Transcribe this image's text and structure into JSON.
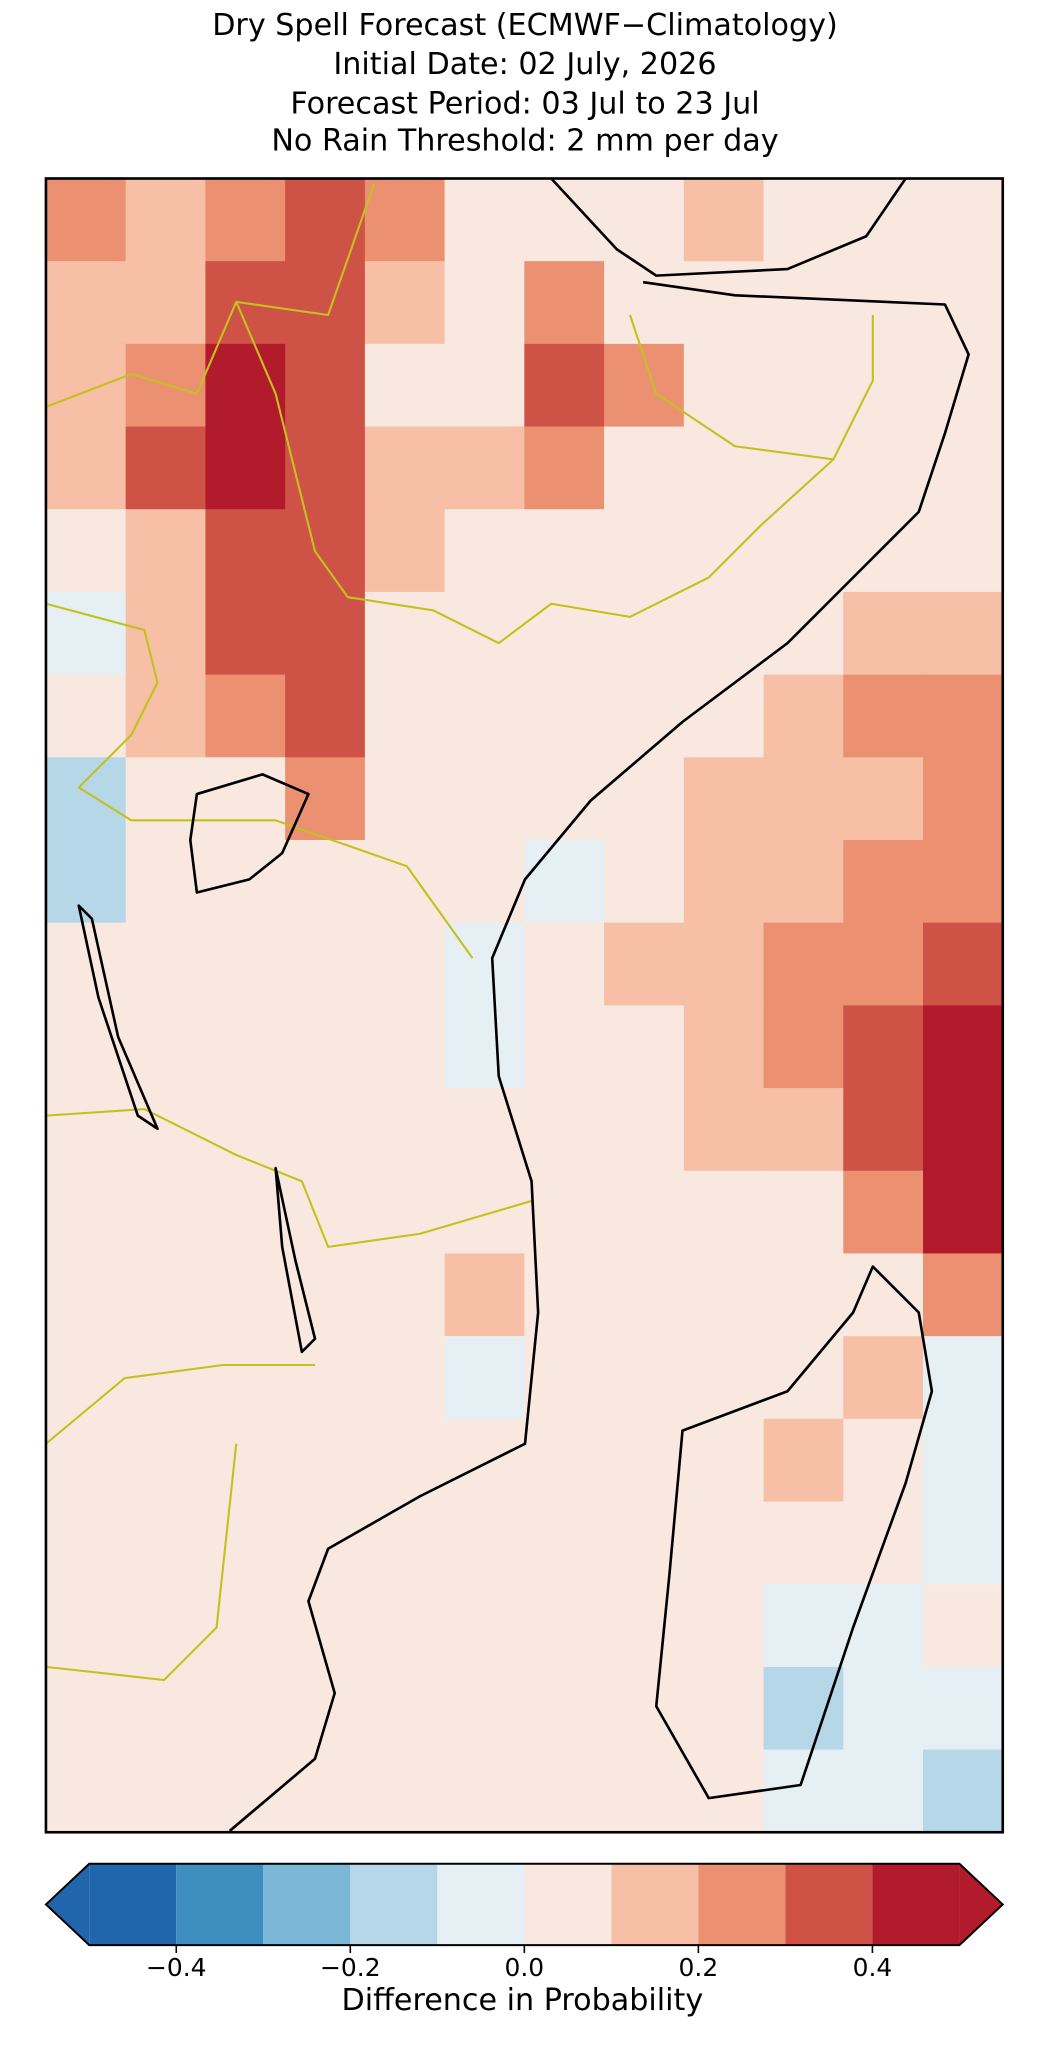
{
  "chart_data": {
    "type": "heatmap",
    "title": [
      "Dry Spell Forecast (ECMWF−Climatology)",
      "Initial Date: 02 July, 2026",
      "Forecast Period: 03 Jul to 23 Jul",
      "No Rain Threshold: 2 mm per day"
    ],
    "values": [
      [
        0.25,
        0.15,
        0.25,
        0.35,
        0.25,
        0.05,
        0.05,
        0.05,
        0.15,
        0.05,
        0.05,
        0.05
      ],
      [
        0.15,
        0.15,
        0.35,
        0.35,
        0.15,
        0.05,
        0.25,
        0.05,
        0.05,
        0.05,
        0.05,
        0.05
      ],
      [
        0.15,
        0.25,
        0.45,
        0.35,
        0.05,
        0.05,
        0.35,
        0.25,
        0.05,
        0.05,
        0.05,
        0.05
      ],
      [
        0.15,
        0.35,
        0.45,
        0.35,
        0.15,
        0.15,
        0.25,
        0.05,
        0.05,
        0.05,
        0.05,
        0.05
      ],
      [
        0.05,
        0.15,
        0.35,
        0.35,
        0.15,
        0.05,
        0.05,
        0.05,
        0.05,
        0.05,
        0.05,
        0.05
      ],
      [
        -0.05,
        0.15,
        0.35,
        0.35,
        0.05,
        0.05,
        0.05,
        0.05,
        0.05,
        0.05,
        0.15,
        0.15
      ],
      [
        0.05,
        0.15,
        0.25,
        0.35,
        0.05,
        0.05,
        0.05,
        0.05,
        0.05,
        0.15,
        0.25,
        0.25
      ],
      [
        -0.15,
        0.05,
        0.05,
        0.25,
        0.05,
        0.05,
        0.05,
        0.05,
        0.15,
        0.15,
        0.15,
        0.25
      ],
      [
        -0.15,
        0.05,
        0.05,
        0.05,
        0.05,
        0.05,
        -0.05,
        0.05,
        0.15,
        0.15,
        0.25,
        0.25
      ],
      [
        0.05,
        0.05,
        0.05,
        0.05,
        0.05,
        -0.05,
        0.05,
        0.15,
        0.15,
        0.25,
        0.25,
        0.35
      ],
      [
        0.05,
        0.05,
        0.05,
        0.05,
        0.05,
        -0.05,
        0.05,
        0.05,
        0.15,
        0.25,
        0.35,
        0.45
      ],
      [
        0.05,
        0.05,
        0.05,
        0.05,
        0.05,
        0.05,
        0.05,
        0.05,
        0.15,
        0.15,
        0.35,
        0.45
      ],
      [
        0.05,
        0.05,
        0.05,
        0.05,
        0.05,
        0.05,
        0.05,
        0.05,
        0.05,
        0.05,
        0.25,
        0.45
      ],
      [
        0.05,
        0.05,
        0.05,
        0.05,
        0.05,
        0.15,
        0.05,
        0.05,
        0.05,
        0.05,
        0.05,
        0.25
      ],
      [
        0.05,
        0.05,
        0.05,
        0.05,
        0.05,
        -0.05,
        0.05,
        0.05,
        0.05,
        0.05,
        0.15,
        -0.05
      ],
      [
        0.05,
        0.05,
        0.05,
        0.05,
        0.05,
        0.05,
        0.05,
        0.05,
        0.05,
        0.15,
        0.05,
        -0.05
      ],
      [
        0.05,
        0.05,
        0.05,
        0.05,
        0.05,
        0.05,
        0.05,
        0.05,
        0.05,
        0.05,
        0.05,
        -0.05
      ],
      [
        0.05,
        0.05,
        0.05,
        0.05,
        0.05,
        0.05,
        0.05,
        0.05,
        0.05,
        -0.05,
        -0.05,
        0.05
      ],
      [
        0.05,
        0.05,
        0.05,
        0.05,
        0.05,
        0.05,
        0.05,
        0.05,
        0.05,
        -0.15,
        -0.05,
        -0.05
      ],
      [
        0.05,
        0.05,
        0.05,
        0.05,
        0.05,
        0.05,
        0.05,
        0.05,
        0.05,
        -0.05,
        -0.05,
        -0.15
      ]
    ],
    "boundaries": [
      -0.5,
      -0.4,
      -0.3,
      -0.2,
      -0.1,
      0,
      0.1,
      0.2,
      0.3,
      0.4,
      0.5
    ],
    "colors": [
      "#2166ac",
      "#3f8ec0",
      "#7db7d8",
      "#b6d7e8",
      "#e6eff4",
      "#f9e8e0",
      "#f7bfa5",
      "#eb9172",
      "#cf5246",
      "#b11b2c"
    ],
    "clim": [
      -0.5,
      0.5
    ],
    "cticks": [
      {
        "value": -0.4,
        "label": "−0.4"
      },
      {
        "value": -0.2,
        "label": "−0.2"
      },
      {
        "value": 0,
        "label": "0.0"
      },
      0.2,
      0.4
    ],
    "clabel": "Difference in Probability"
  }
}
